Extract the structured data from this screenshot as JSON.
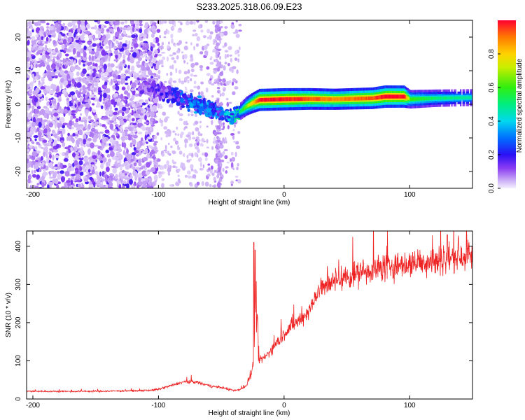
{
  "title": "S233.2025.318.06.09.E23",
  "chart_data": [
    {
      "type": "heatmap",
      "name": "spectrogram",
      "xlabel": "Height of straight line (km)",
      "ylabel": "Frequency (Hz)",
      "xlim": [
        -205,
        150
      ],
      "ylim": [
        -25,
        25
      ],
      "xticks": [
        -200,
        -100,
        0,
        100
      ],
      "yticks": [
        -20,
        -10,
        0,
        10,
        20
      ],
      "colorbar": {
        "label": "Normalized spectral amplitude",
        "range": [
          0,
          1
        ],
        "ticks": [
          0.0,
          0.2,
          0.4,
          0.6,
          0.8
        ],
        "tick_labels": [
          "0.0",
          "0.2",
          "0.4",
          "0.6",
          "0.8"
        ]
      },
      "ridge": {
        "x": [
          -110,
          -100,
          -90,
          -80,
          -70,
          -60,
          -50,
          -40,
          -35,
          -30,
          -25,
          -20,
          0,
          20,
          40,
          70,
          80,
          95,
          100,
          120,
          150
        ],
        "freq": [
          5,
          4,
          3,
          1.5,
          0,
          -1.5,
          -2.5,
          -3.5,
          -2,
          -0.5,
          0.5,
          1.3,
          1.5,
          1.6,
          1.5,
          1.8,
          2.3,
          2.3,
          1.5,
          1.8,
          2
        ],
        "amplitude": [
          0.12,
          0.15,
          0.18,
          0.25,
          0.3,
          0.3,
          0.3,
          0.4,
          0.5,
          0.65,
          0.8,
          0.95,
          0.95,
          0.9,
          0.85,
          0.9,
          0.97,
          0.95,
          0.6,
          0.5,
          0.45
        ]
      },
      "noise": {
        "strong_region_x": [
          -205,
          -100
        ],
        "weak_region_x": [
          -100,
          -35
        ],
        "amplitude_range": [
          0.02,
          0.15
        ]
      }
    },
    {
      "type": "line",
      "name": "snr",
      "xlabel": "Height of straight line (km)",
      "ylabel": "SNR (10 * v/v)",
      "xlim": [
        -205,
        150
      ],
      "ylim": [
        0,
        440
      ],
      "xticks": [
        -200,
        -100,
        0,
        100
      ],
      "yticks": [
        0,
        100,
        200,
        300,
        400
      ],
      "color": "#ee2222",
      "series": [
        {
          "name": "SNR",
          "envelope_x": [
            -205,
            -150,
            -110,
            -100,
            -90,
            -80,
            -70,
            -60,
            -50,
            -40,
            -35,
            -30,
            -25,
            -22,
            -20,
            -15,
            -10,
            -5,
            0,
            5,
            10,
            15,
            20,
            25,
            30,
            35,
            40,
            50,
            60,
            70,
            80,
            90,
            100,
            110,
            120,
            130,
            140,
            150
          ],
          "envelope_y": [
            20,
            20,
            22,
            25,
            35,
            45,
            45,
            35,
            30,
            22,
            25,
            35,
            80,
            250,
            100,
            110,
            130,
            150,
            170,
            190,
            200,
            215,
            230,
            270,
            290,
            300,
            310,
            320,
            330,
            340,
            345,
            350,
            355,
            360,
            365,
            370,
            375,
            380
          ],
          "spikes": [
            {
              "x": -24,
              "y": 410
            },
            {
              "x": -23,
              "y": 390
            },
            {
              "x": 130,
              "y": 430
            }
          ]
        }
      ]
    }
  ]
}
